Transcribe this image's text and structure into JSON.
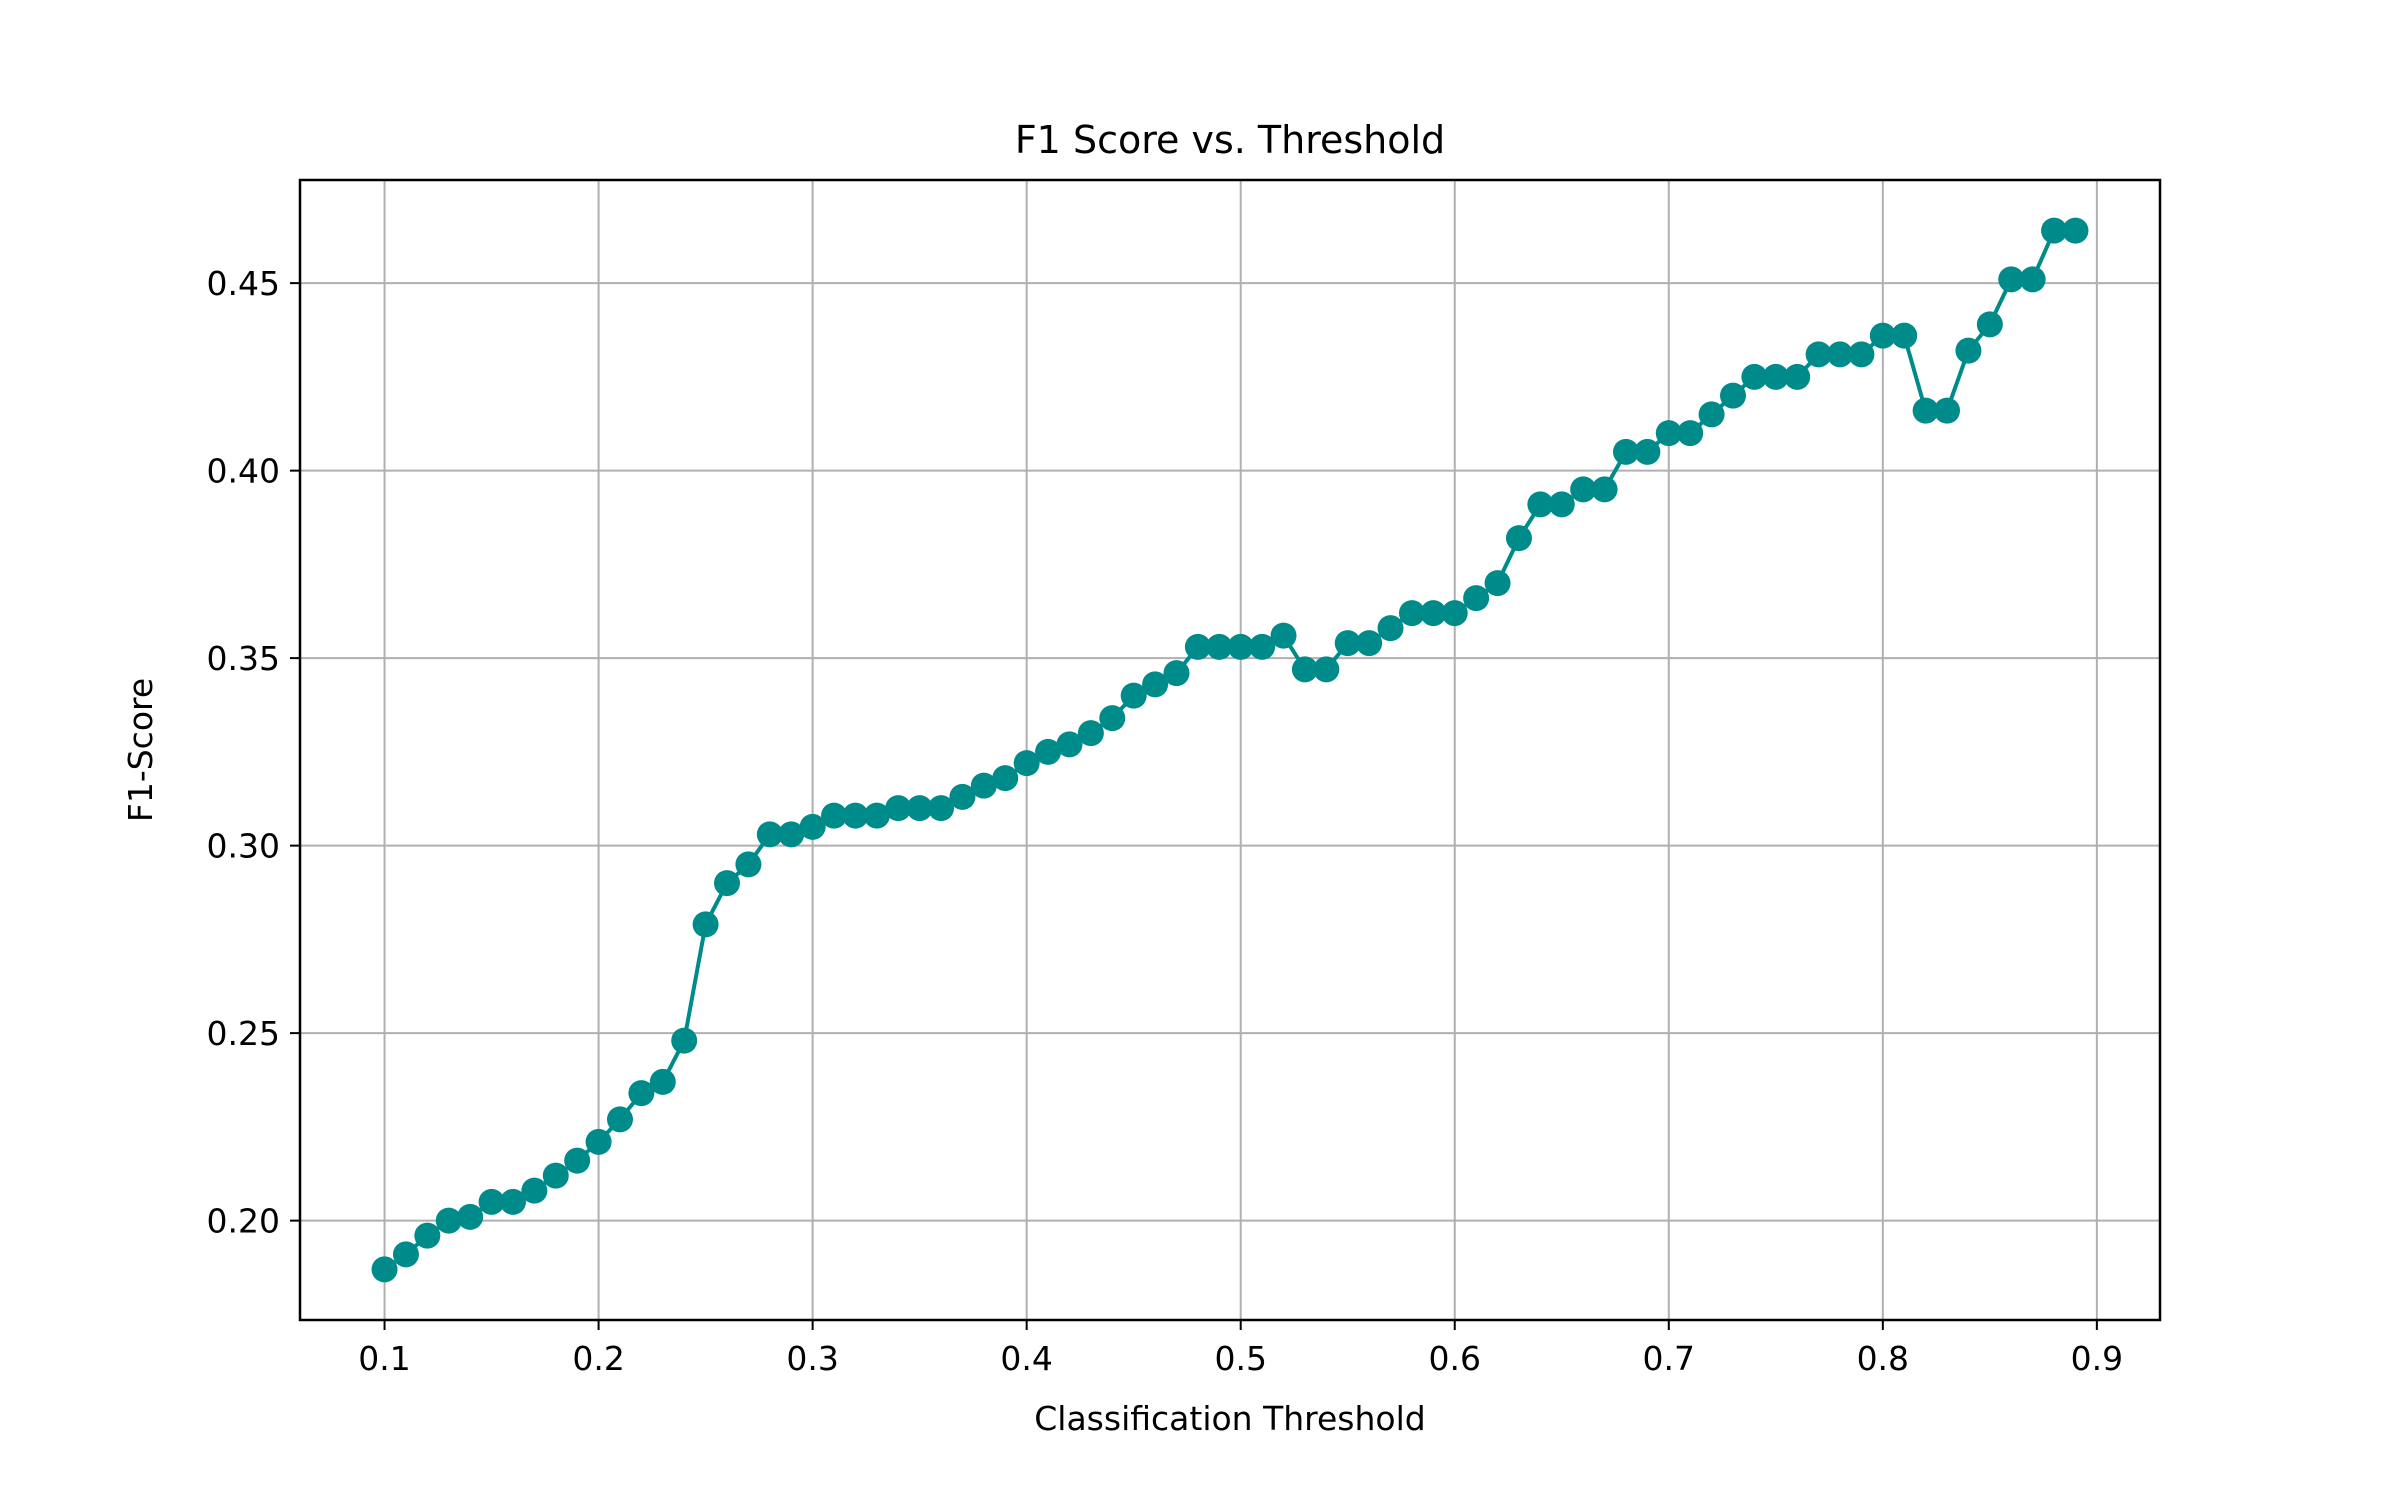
{
  "chart_data": {
    "type": "line",
    "title": "F1 Score vs. Threshold",
    "xlabel": "Classification Threshold",
    "ylabel": "F1-Score",
    "xlim": [
      0.0605,
      0.9295
    ],
    "ylim": [
      0.1735,
      0.4775
    ],
    "xticks": [
      0.1,
      0.2,
      0.3,
      0.4,
      0.5,
      0.6,
      0.7,
      0.8,
      0.9
    ],
    "xtick_labels": [
      "0.1",
      "0.2",
      "0.3",
      "0.4",
      "0.5",
      "0.6",
      "0.7",
      "0.8",
      "0.9"
    ],
    "yticks": [
      0.2,
      0.25,
      0.3,
      0.35,
      0.4,
      0.45
    ],
    "ytick_labels": [
      "0.20",
      "0.25",
      "0.30",
      "0.35",
      "0.40",
      "0.45"
    ],
    "grid": true,
    "series": [
      {
        "color": "#008b8b",
        "marker": "circle",
        "x": [
          0.1,
          0.11,
          0.12,
          0.13,
          0.14,
          0.15,
          0.16,
          0.17,
          0.18,
          0.19,
          0.2,
          0.21,
          0.22,
          0.23,
          0.24,
          0.25,
          0.26,
          0.27,
          0.28,
          0.29,
          0.3,
          0.31,
          0.32,
          0.33,
          0.34,
          0.35,
          0.36,
          0.37,
          0.38,
          0.39,
          0.4,
          0.41,
          0.42,
          0.43,
          0.44,
          0.45,
          0.46,
          0.47,
          0.48,
          0.49,
          0.5,
          0.51,
          0.52,
          0.53,
          0.54,
          0.55,
          0.56,
          0.57,
          0.58,
          0.59,
          0.6,
          0.61,
          0.62,
          0.63,
          0.64,
          0.65,
          0.66,
          0.67,
          0.68,
          0.69,
          0.7,
          0.71,
          0.72,
          0.73,
          0.74,
          0.75,
          0.76,
          0.77,
          0.78,
          0.79,
          0.8,
          0.81,
          0.82,
          0.83,
          0.84,
          0.85,
          0.86,
          0.87,
          0.88,
          0.89
        ],
        "y": [
          0.187,
          0.191,
          0.196,
          0.2,
          0.201,
          0.205,
          0.205,
          0.208,
          0.212,
          0.216,
          0.221,
          0.227,
          0.234,
          0.237,
          0.248,
          0.279,
          0.29,
          0.295,
          0.303,
          0.303,
          0.305,
          0.308,
          0.308,
          0.308,
          0.31,
          0.31,
          0.31,
          0.313,
          0.316,
          0.318,
          0.322,
          0.325,
          0.327,
          0.33,
          0.334,
          0.34,
          0.343,
          0.346,
          0.353,
          0.353,
          0.353,
          0.353,
          0.356,
          0.347,
          0.347,
          0.354,
          0.354,
          0.358,
          0.362,
          0.362,
          0.362,
          0.366,
          0.37,
          0.382,
          0.391,
          0.391,
          0.395,
          0.395,
          0.405,
          0.405,
          0.41,
          0.41,
          0.415,
          0.42,
          0.425,
          0.425,
          0.425,
          0.431,
          0.431,
          0.431,
          0.436,
          0.436,
          0.416,
          0.416,
          0.432,
          0.439,
          0.451,
          0.451,
          0.464,
          0.464
        ]
      }
    ]
  }
}
